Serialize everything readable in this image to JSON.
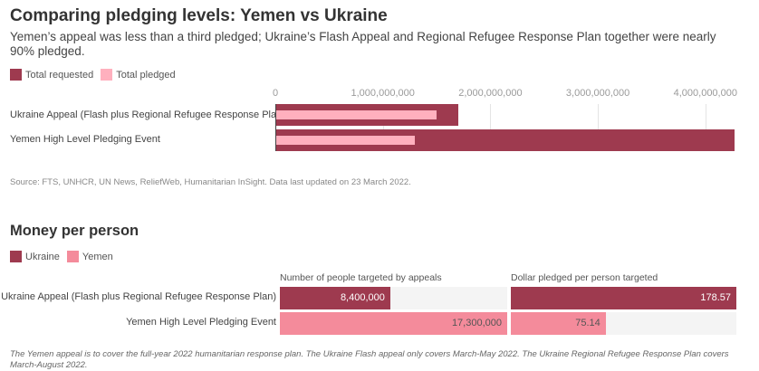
{
  "colors": {
    "requested": "#9e3a4f",
    "pledged": "#ffb0be",
    "ukraine": "#9e3a4f",
    "yemen": "#f48b9b",
    "track": "#f4f4f4"
  },
  "chart_data": [
    {
      "type": "bar",
      "orientation": "horizontal",
      "title": "Comparing pledging levels: Yemen vs Ukraine",
      "subtitle": "Yemen’s appeal was less than a third pledged; Ukraine’s Flash Appeal and Regional Refugee Response Plan together were nearly 90% pledged.",
      "categories": [
        "Ukraine Appeal (Flash plus Regional Refugee Response Plan)",
        "Yemen High Level Pledging Event"
      ],
      "series": [
        {
          "name": "Total requested",
          "values": [
            1700000000,
            4270000000
          ]
        },
        {
          "name": "Total pledged",
          "values": [
            1500000000,
            1300000000
          ]
        }
      ],
      "xlim": [
        0,
        4300000000
      ],
      "xticks": [
        0,
        1000000000,
        2000000000,
        3000000000,
        4000000000
      ],
      "xtick_labels": [
        "0",
        "1,000,000,000",
        "2,000,000,000",
        "3,000,000,000",
        "4,000,000,000"
      ],
      "grid": true,
      "legend": "top-left",
      "source": "Source: FTS, UNHCR, UN News, ReliefWeb, Humanitarian InSight. Data last updated on 23 March 2022."
    },
    {
      "type": "bar",
      "orientation": "horizontal",
      "title": "Money per person",
      "legend_entries": [
        "Ukraine",
        "Yemen"
      ],
      "legend": "top-left",
      "categories": [
        "Ukraine Appeal (Flash plus Regional Refugee Response Plan)",
        "Yemen High Level Pledging Event"
      ],
      "panels": [
        {
          "title": "Number of people targeted by appeals",
          "values": [
            8400000,
            17300000
          ],
          "labels": [
            "8,400,000",
            "17,300,000"
          ],
          "max": 17300000
        },
        {
          "title": "Dollar pledged per person targeted",
          "values": [
            178.57,
            75.14
          ],
          "labels": [
            "178.57",
            "75.14"
          ],
          "max": 178.57
        }
      ],
      "note": "The Yemen appeal is to cover the full-year 2022 humanitarian response plan. The Ukraine Flash appeal only covers March-May 2022. The Ukraine Regional Refugee Response Plan covers March-August 2022."
    }
  ]
}
